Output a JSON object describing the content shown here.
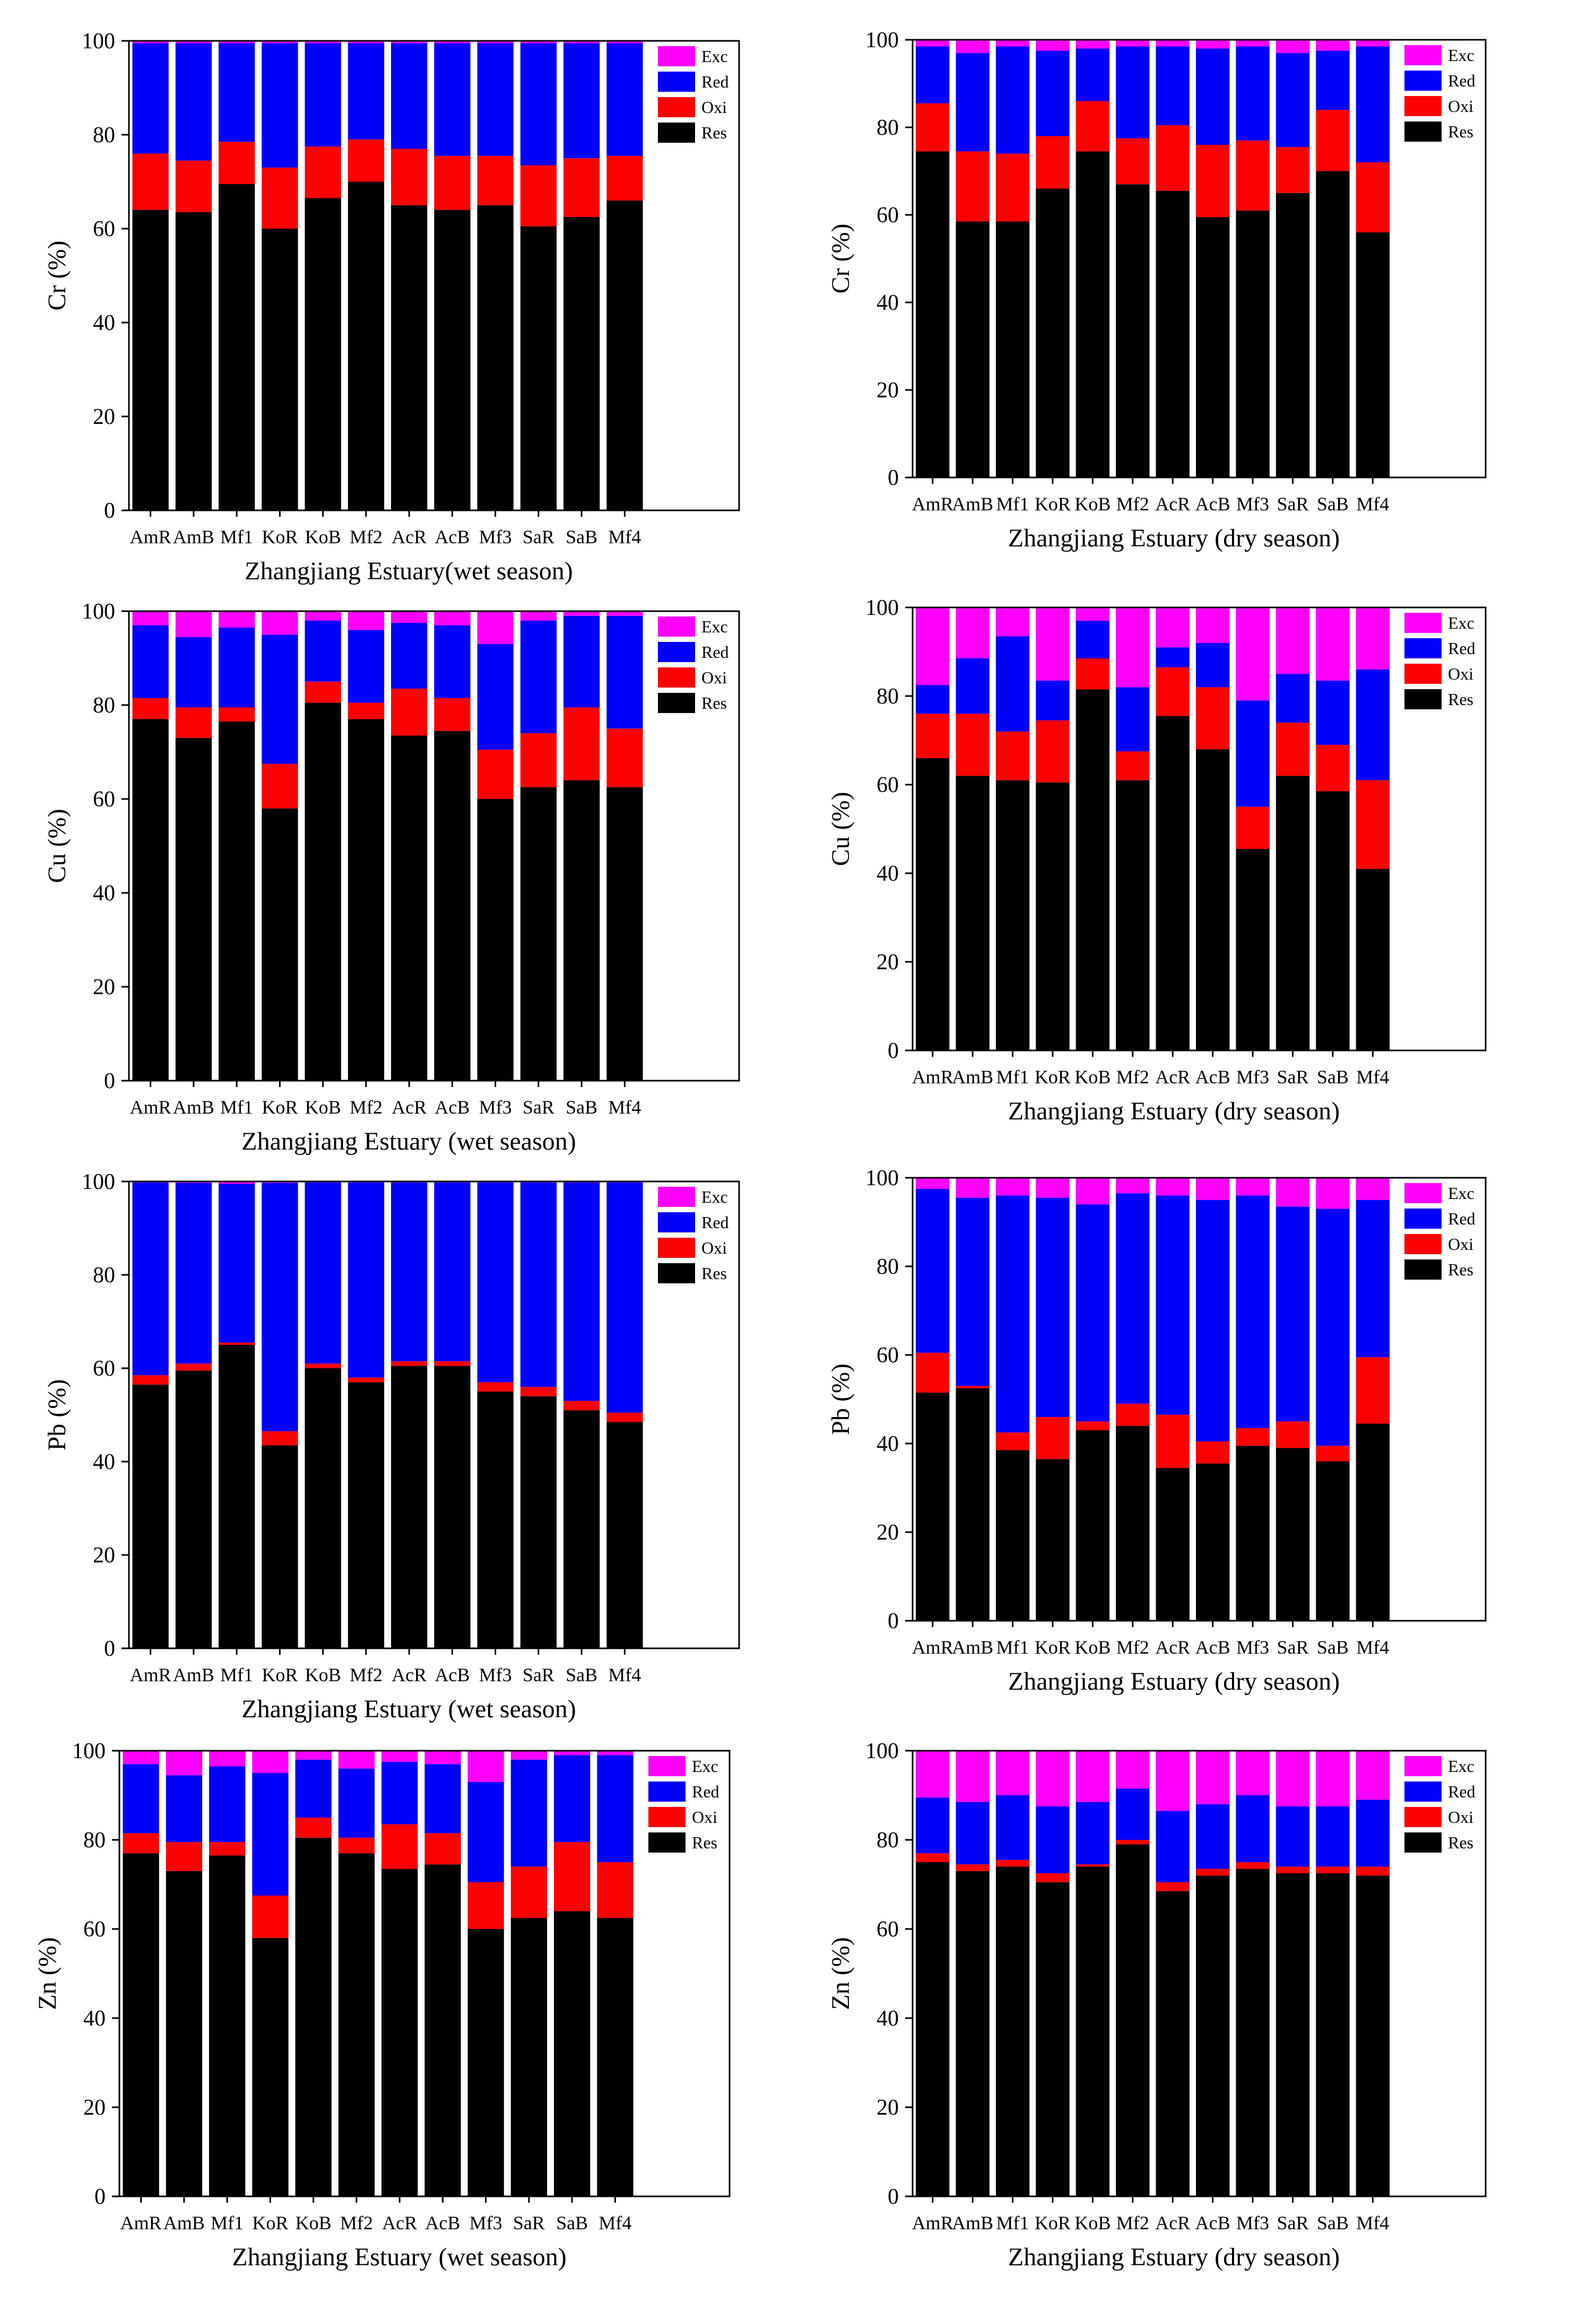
{
  "colors": {
    "Exc": "#ff00ff",
    "Red": "#0000ff",
    "Oxi": "#ff0000",
    "Res": "#000000"
  },
  "chart_data": [
    {
      "type": "bar",
      "stacked": true,
      "element": "Cr",
      "season": "wet",
      "title": "",
      "xlabel": "Zhangjiang Estuary(wet season)",
      "ylabel": "Cr (%)",
      "ylim": [
        0,
        100
      ],
      "yticks": [
        "0",
        "20",
        "40",
        "60",
        "80",
        "100"
      ],
      "legend_position": "top-right",
      "categories": [
        "AmR",
        "AmB",
        "Mf1",
        "KoR",
        "KoB",
        "Mf2",
        "AcR",
        "AcB",
        "Mf3",
        "SaR",
        "SaB",
        "Mf4"
      ],
      "series": [
        {
          "name": "Res",
          "values": [
            64,
            63.5,
            69.5,
            60,
            66.5,
            70,
            65,
            64,
            65,
            60.5,
            62.5,
            66
          ]
        },
        {
          "name": "Oxi",
          "values": [
            12,
            11,
            9,
            13,
            11,
            9,
            12,
            11.5,
            10.5,
            13,
            12.5,
            9.5
          ]
        },
        {
          "name": "Red",
          "values": [
            23.5,
            25,
            21,
            26.5,
            22,
            20.5,
            22.5,
            24,
            24,
            26,
            24.5,
            24
          ]
        },
        {
          "name": "Exc",
          "values": [
            0.5,
            0.5,
            0.5,
            0.5,
            0.5,
            0.5,
            0.5,
            0.5,
            0.5,
            0.5,
            0.5,
            0.5
          ]
        }
      ]
    },
    {
      "type": "bar",
      "stacked": true,
      "element": "Cr",
      "season": "dry",
      "title": "",
      "xlabel": "Zhangjiang Estuary (dry season)",
      "ylabel": "Cr (%)",
      "ylim": [
        0,
        100
      ],
      "yticks": [
        "0",
        "20",
        "40",
        "60",
        "80",
        "100"
      ],
      "legend_position": "top-right",
      "categories": [
        "AmR",
        "AmB",
        "Mf1",
        "KoR",
        "KoB",
        "Mf2",
        "AcR",
        "AcB",
        "Mf3",
        "SaR",
        "SaB",
        "Mf4"
      ],
      "series": [
        {
          "name": "Res",
          "values": [
            74.5,
            58.5,
            58.5,
            66,
            74.5,
            67,
            65.5,
            59.5,
            61,
            65,
            70,
            56
          ]
        },
        {
          "name": "Oxi",
          "values": [
            11,
            16,
            15.5,
            12,
            11.5,
            10.5,
            15,
            16.5,
            16,
            10.5,
            14,
            16
          ]
        },
        {
          "name": "Red",
          "values": [
            13,
            22.5,
            24.5,
            19.5,
            12,
            21,
            18,
            22,
            21.5,
            21.5,
            13.5,
            26.5
          ]
        },
        {
          "name": "Exc",
          "values": [
            1.5,
            3,
            1.5,
            2.5,
            2,
            1.5,
            1.5,
            2,
            1.5,
            3,
            2.5,
            1.5
          ]
        }
      ]
    },
    {
      "type": "bar",
      "stacked": true,
      "element": "Cu",
      "season": "wet",
      "title": "",
      "xlabel": "Zhangjiang Estuary (wet season)",
      "ylabel": "Cu (%)",
      "ylim": [
        0,
        100
      ],
      "yticks": [
        "0",
        "20",
        "40",
        "60",
        "80",
        "100"
      ],
      "legend_position": "top-right",
      "categories": [
        "AmR",
        "AmB",
        "Mf1",
        "KoR",
        "KoB",
        "Mf2",
        "AcR",
        "AcB",
        "Mf3",
        "SaR",
        "SaB",
        "Mf4"
      ],
      "series": [
        {
          "name": "Res",
          "values": [
            77,
            73,
            76.5,
            58,
            80.5,
            77,
            73.5,
            74.5,
            60,
            62.5,
            64,
            62.5
          ]
        },
        {
          "name": "Oxi",
          "values": [
            4.5,
            6.5,
            3,
            9.5,
            4.5,
            3.5,
            10,
            7,
            10.5,
            11.5,
            15.5,
            12.5
          ]
        },
        {
          "name": "Red",
          "values": [
            15.5,
            15,
            17,
            27.5,
            13,
            15.5,
            14,
            15.5,
            22.5,
            24,
            19.5,
            24
          ]
        },
        {
          "name": "Exc",
          "values": [
            3,
            5.5,
            3.5,
            5,
            2,
            4,
            2.5,
            3,
            7,
            2,
            1,
            1
          ]
        }
      ]
    },
    {
      "type": "bar",
      "stacked": true,
      "element": "Cu",
      "season": "dry",
      "title": "",
      "xlabel": "Zhangjiang Estuary (dry season)",
      "ylabel": "Cu (%)",
      "ylim": [
        0,
        100
      ],
      "yticks": [
        "0",
        "20",
        "40",
        "60",
        "80",
        "100"
      ],
      "legend_position": "top-right",
      "categories": [
        "AmR",
        "AmB",
        "Mf1",
        "KoR",
        "KoB",
        "Mf2",
        "AcR",
        "AcB",
        "Mf3",
        "SaR",
        "SaB",
        "Mf4"
      ],
      "series": [
        {
          "name": "Res",
          "values": [
            66,
            62,
            61,
            60.5,
            81.5,
            61,
            75.5,
            68,
            45.5,
            62,
            58.5,
            41
          ]
        },
        {
          "name": "Oxi",
          "values": [
            10,
            14,
            11,
            14,
            7,
            6.5,
            11,
            14,
            9.5,
            12,
            10.5,
            20
          ]
        },
        {
          "name": "Red",
          "values": [
            6.5,
            12.5,
            21.5,
            9,
            8.5,
            14.5,
            4.5,
            10,
            24,
            11,
            14.5,
            25
          ]
        },
        {
          "name": "Exc",
          "values": [
            17.5,
            11.5,
            6.5,
            16.5,
            3,
            18,
            9,
            8,
            21,
            15,
            16.5,
            14
          ]
        }
      ]
    },
    {
      "type": "bar",
      "stacked": true,
      "element": "Pb",
      "season": "wet",
      "title": "",
      "xlabel": "Zhangjiang Estuary (wet season)",
      "ylabel": "Pb (%)",
      "ylim": [
        0,
        100
      ],
      "yticks": [
        "0",
        "20",
        "40",
        "60",
        "80",
        "100"
      ],
      "legend_position": "top-right",
      "categories": [
        "AmR",
        "AmB",
        "Mf1",
        "KoR",
        "KoB",
        "Mf2",
        "AcR",
        "AcB",
        "Mf3",
        "SaR",
        "SaB",
        "Mf4"
      ],
      "series": [
        {
          "name": "Res",
          "values": [
            56.5,
            59.5,
            65,
            43.5,
            60,
            57,
            60.5,
            60.5,
            55,
            54,
            51,
            48.5
          ]
        },
        {
          "name": "Oxi",
          "values": [
            2,
            1.5,
            0.5,
            3,
            1,
            1,
            1,
            1,
            2,
            2,
            2,
            2
          ]
        },
        {
          "name": "Red",
          "values": [
            41.3,
            38.7,
            34,
            53.2,
            38.8,
            41.8,
            38.3,
            38.3,
            42.8,
            43.8,
            46.8,
            49.3
          ]
        },
        {
          "name": "Exc",
          "values": [
            0.2,
            0.3,
            0.5,
            0.3,
            0.2,
            0.2,
            0.2,
            0.2,
            0.2,
            0.2,
            0.2,
            0.2
          ]
        }
      ]
    },
    {
      "type": "bar",
      "stacked": true,
      "element": "Pb",
      "season": "dry",
      "title": "",
      "xlabel": "Zhangjiang Estuary (dry season)",
      "ylabel": "Pb (%)",
      "ylim": [
        0,
        100
      ],
      "yticks": [
        "0",
        "20",
        "40",
        "60",
        "80",
        "100"
      ],
      "legend_position": "top-right",
      "categories": [
        "AmR",
        "AmB",
        "Mf1",
        "KoR",
        "KoB",
        "Mf2",
        "AcR",
        "AcB",
        "Mf3",
        "SaR",
        "SaB",
        "Mf4"
      ],
      "series": [
        {
          "name": "Res",
          "values": [
            51.5,
            52.5,
            38.5,
            36.5,
            43,
            44,
            34.5,
            35.5,
            39.5,
            39,
            36,
            44.5
          ]
        },
        {
          "name": "Oxi",
          "values": [
            9,
            0.5,
            4,
            9.5,
            2,
            5,
            12,
            5,
            4,
            6,
            3.5,
            15
          ]
        },
        {
          "name": "Red",
          "values": [
            37,
            42.5,
            53.5,
            49.5,
            49,
            47.5,
            49.5,
            54.5,
            52.5,
            48.5,
            53.5,
            35.5
          ]
        },
        {
          "name": "Exc",
          "values": [
            2.5,
            4.5,
            4,
            4.5,
            6,
            3.5,
            4,
            5,
            4,
            6.5,
            7,
            5
          ]
        }
      ]
    },
    {
      "type": "bar",
      "stacked": true,
      "element": "Zn",
      "season": "wet",
      "title": "",
      "xlabel": "Zhangjiang Estuary (wet season)",
      "ylabel": "Zn (%)",
      "ylim": [
        0,
        100
      ],
      "yticks": [
        "0",
        "20",
        "40",
        "60",
        "80",
        "100"
      ],
      "legend_position": "top-right",
      "categories": [
        "AmR",
        "AmB",
        "Mf1",
        "KoR",
        "KoB",
        "Mf2",
        "AcR",
        "AcB",
        "Mf3",
        "SaR",
        "SaB",
        "Mf4"
      ],
      "series": [
        {
          "name": "Res",
          "values": [
            77,
            73,
            76.5,
            58,
            80.5,
            77,
            73.5,
            74.5,
            60,
            62.5,
            64,
            62.5
          ]
        },
        {
          "name": "Oxi",
          "values": [
            4.5,
            6.5,
            3,
            9.5,
            4.5,
            3.5,
            10,
            7,
            10.5,
            11.5,
            15.5,
            12.5
          ]
        },
        {
          "name": "Red",
          "values": [
            15.5,
            15,
            17,
            27.5,
            13,
            15.5,
            14,
            15.5,
            22.5,
            24,
            19.5,
            24
          ]
        },
        {
          "name": "Exc",
          "values": [
            3,
            5.5,
            3.5,
            5,
            2,
            4,
            2.5,
            3,
            7,
            2,
            1,
            1
          ]
        }
      ]
    },
    {
      "type": "bar",
      "stacked": true,
      "element": "Zn",
      "season": "dry",
      "title": "",
      "xlabel": "Zhangjiang Estuary (dry season)",
      "ylabel": "Zn (%)",
      "ylim": [
        0,
        100
      ],
      "yticks": [
        "0",
        "20",
        "40",
        "60",
        "80",
        "100"
      ],
      "legend_position": "top-right",
      "categories": [
        "AmR",
        "AmB",
        "Mf1",
        "KoR",
        "KoB",
        "Mf2",
        "AcR",
        "AcB",
        "Mf3",
        "SaR",
        "SaB",
        "Mf4"
      ],
      "series": [
        {
          "name": "Res",
          "values": [
            75,
            73,
            74,
            70.5,
            74,
            79,
            68.5,
            72,
            73.5,
            72.5,
            72.5,
            72
          ]
        },
        {
          "name": "Oxi",
          "values": [
            2,
            1.5,
            1.5,
            2,
            0.5,
            1,
            2,
            1.5,
            1.5,
            1.5,
            1.5,
            2
          ]
        },
        {
          "name": "Red",
          "values": [
            12.5,
            14,
            14.5,
            15,
            14,
            11.5,
            16,
            14.5,
            15,
            13.5,
            13.5,
            15
          ]
        },
        {
          "name": "Exc",
          "values": [
            10.5,
            11.5,
            10,
            12.5,
            11.5,
            8.5,
            13.5,
            12,
            10,
            12.5,
            12.5,
            11
          ]
        }
      ]
    }
  ]
}
